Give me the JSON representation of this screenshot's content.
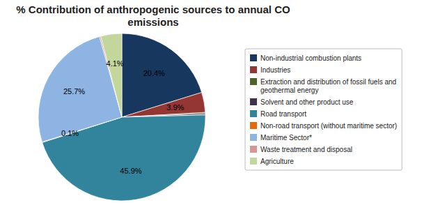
{
  "chart_data": {
    "type": "pie",
    "title": "% Contribution of anthropogenic sources to annual CO\nemissions",
    "categories": [
      "Non-industrial combustion plants",
      "Industries",
      "Extraction and distribution of fossil fuels and\ngeothermal energy",
      "Solvent and other product use",
      "Road transport",
      "Non-road transport (without maritime sector)",
      "Maritime Sector*",
      "Waste treatment and disposal",
      "Agriculture"
    ],
    "values": [
      20.4,
      3.9,
      0.25,
      0.25,
      45.9,
      0.1,
      25.7,
      0.25,
      4.1
    ],
    "value_labels": [
      "20.4%",
      "3.9%",
      null,
      null,
      "45.9%",
      "0.1%",
      "25.7%",
      null,
      "4.1%"
    ],
    "colors": [
      "#17375E",
      "#943634",
      "#4F6228",
      "#403151",
      "#31849B",
      "#E36C09",
      "#8DB4E2",
      "#D99694",
      "#C3D69B"
    ],
    "data_labels": true,
    "legend": "right"
  }
}
